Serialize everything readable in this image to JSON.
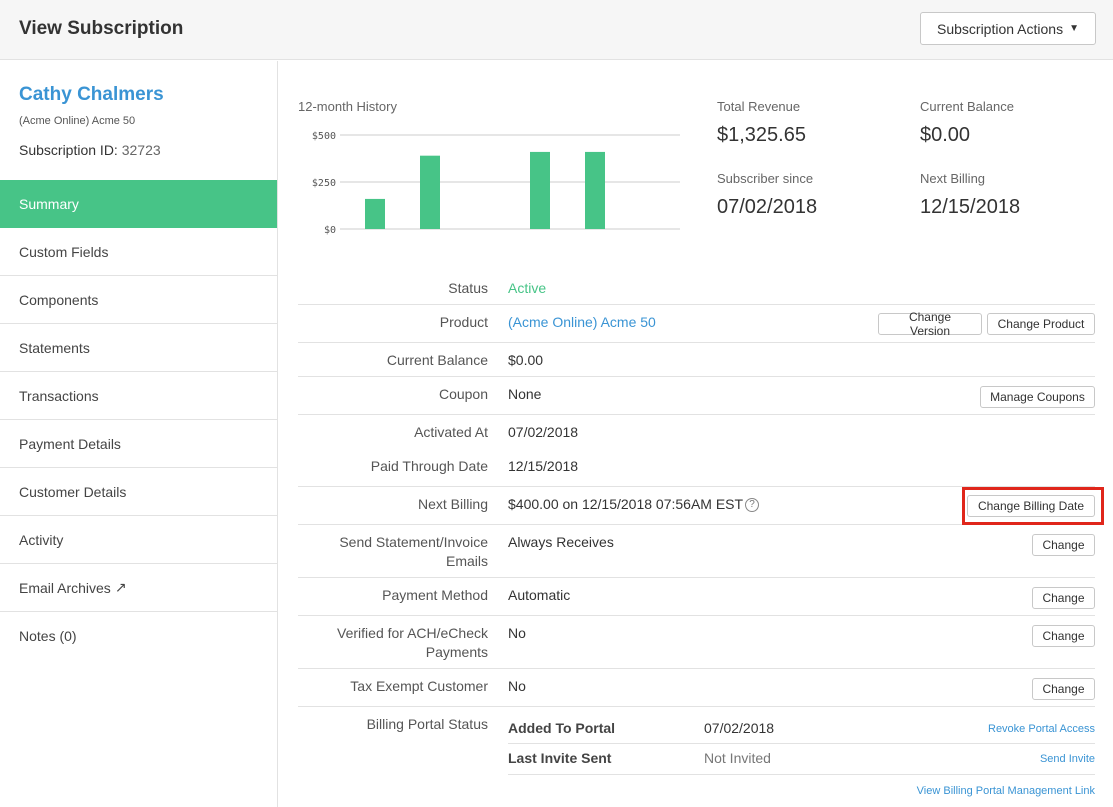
{
  "header": {
    "title": "View Subscription",
    "actions_label": "Subscription Actions"
  },
  "sidebar": {
    "customer_name": "Cathy Chalmers",
    "product": "(Acme Online) Acme 50",
    "subscription_id_label": "Subscription ID:",
    "subscription_id": "32723",
    "items": [
      {
        "label": "Summary",
        "active": true
      },
      {
        "label": "Custom Fields"
      },
      {
        "label": "Components"
      },
      {
        "label": "Statements"
      },
      {
        "label": "Transactions"
      },
      {
        "label": "Payment Details"
      },
      {
        "label": "Customer Details"
      },
      {
        "label": "Activity"
      },
      {
        "label": "Email Archives",
        "icon": "external-link-icon"
      },
      {
        "label": "Notes (0)"
      }
    ]
  },
  "history": {
    "label": "12-month History"
  },
  "chart_data": {
    "type": "bar",
    "values": [
      160,
      390,
      0,
      410,
      410
    ],
    "y_ticks": [
      "$500",
      "$250",
      "$0"
    ],
    "ylim": [
      0,
      500
    ],
    "color": "#47c487"
  },
  "stats": {
    "total_revenue_label": "Total Revenue",
    "total_revenue": "$1,325.65",
    "current_balance_label": "Current Balance",
    "current_balance": "$0.00",
    "subscriber_since_label": "Subscriber since",
    "subscriber_since": "07/02/2018",
    "next_billing_label": "Next Billing",
    "next_billing": "12/15/2018"
  },
  "details": {
    "status_label": "Status",
    "status": "Active",
    "product_label": "Product",
    "product": "(Acme Online) Acme 50",
    "change_version": "Change Version",
    "change_product": "Change Product",
    "balance_label": "Current Balance",
    "balance": "$0.00",
    "coupon_label": "Coupon",
    "coupon": "None",
    "manage_coupons": "Manage Coupons",
    "activated_label": "Activated At",
    "activated": "07/02/2018",
    "paid_through_label": "Paid Through Date",
    "paid_through": "12/15/2018",
    "next_billing_label": "Next Billing",
    "next_billing": "$400.00 on 12/15/2018 07:56AM EST",
    "change_billing_date": "Change Billing Date",
    "statement_label_1": "Send Statement/Invoice",
    "statement_label_2": "Emails",
    "statement": "Always Receives",
    "payment_method_label": "Payment Method",
    "payment_method": "Automatic",
    "ach_label_1": "Verified for ACH/eCheck",
    "ach_label_2": "Payments",
    "ach": "No",
    "tax_label": "Tax Exempt Customer",
    "tax": "No",
    "change": "Change",
    "portal_label": "Billing Portal Status",
    "portal_added_label": "Added To Portal",
    "portal_added": "07/02/2018",
    "revoke": "Revoke Portal Access",
    "portal_invite_label": "Last Invite Sent",
    "portal_invite": "Not Invited",
    "send_invite": "Send Invite",
    "view_link": "View Billing Portal Management Link"
  }
}
